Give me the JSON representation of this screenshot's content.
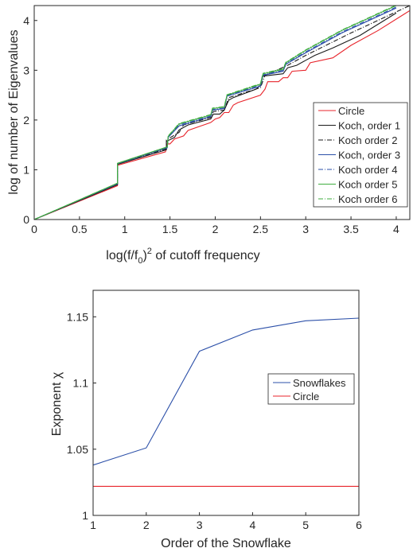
{
  "chart_data": [
    {
      "type": "line",
      "xlabel_main": "log(f/f",
      "xlabel_sub": "0",
      "xlabel_close": ")",
      "xlabel_sup": "2",
      "xlabel_tail": " of cutoff frequency",
      "ylabel": "log of number of Eigenvalues",
      "xlim": [
        0,
        4.15
      ],
      "ylim": [
        0,
        4.3
      ],
      "xticks": [
        0,
        0.5,
        1,
        1.5,
        2,
        2.5,
        3,
        3.5,
        4
      ],
      "xtick_labels": [
        "0",
        "0.5",
        "1",
        "1.5",
        "2",
        "2.5",
        "3",
        "3.5",
        "4"
      ],
      "yticks": [
        0,
        1,
        2,
        3,
        4
      ],
      "ytick_labels": [
        "0",
        "1",
        "2",
        "3",
        "4"
      ],
      "legend_position": "right",
      "series": [
        {
          "name": "Circle",
          "color": "#e8242b",
          "dash": "solid",
          "x": [
            0,
            0.92,
            0.92,
            1.45,
            1.47,
            1.5,
            1.55,
            1.65,
            1.7,
            1.95,
            2.0,
            2.05,
            2.1,
            2.15,
            2.2,
            2.25,
            2.5,
            2.55,
            2.58,
            2.7,
            2.75,
            2.8,
            2.85,
            3.0,
            3.05,
            3.3,
            3.5,
            3.8,
            4.15
          ],
          "y": [
            0,
            0.68,
            1.09,
            1.36,
            1.52,
            1.52,
            1.62,
            1.68,
            1.79,
            1.95,
            2.02,
            2.05,
            2.15,
            2.15,
            2.3,
            2.35,
            2.5,
            2.62,
            2.77,
            2.77,
            2.85,
            2.85,
            2.98,
            3.0,
            3.15,
            3.25,
            3.5,
            3.8,
            4.2
          ]
        },
        {
          "name": "Koch, order 1",
          "color": "#1a1a1a",
          "dash": "solid",
          "x": [
            0,
            0.92,
            0.92,
            1.46,
            1.46,
            1.55,
            1.6,
            1.7,
            1.95,
            1.98,
            2.05,
            2.1,
            2.15,
            2.2,
            2.45,
            2.5,
            2.52,
            2.75,
            2.8,
            2.9,
            3.0,
            3.1,
            3.3,
            3.6,
            4.0
          ],
          "y": [
            0,
            0.7,
            1.11,
            1.4,
            1.57,
            1.65,
            1.8,
            1.9,
            2.02,
            2.12,
            2.12,
            2.2,
            2.4,
            2.45,
            2.62,
            2.7,
            2.88,
            2.93,
            3.05,
            3.1,
            3.2,
            3.3,
            3.45,
            3.7,
            4.15
          ]
        },
        {
          "name": "Koch order 2",
          "color": "#1a1a1a",
          "dash": "6 2 1 2",
          "x": [
            0,
            0.92,
            0.92,
            1.46,
            1.46,
            1.6,
            1.65,
            1.95,
            1.98,
            2.1,
            2.15,
            2.5,
            2.55,
            2.8,
            3.0,
            3.5,
            4.15
          ],
          "y": [
            0,
            0.71,
            1.12,
            1.42,
            1.6,
            1.75,
            1.9,
            2.05,
            2.17,
            2.2,
            2.45,
            2.65,
            2.9,
            3.1,
            3.3,
            3.75,
            4.3
          ]
        },
        {
          "name": "Koch, order 3",
          "color": "#2b4fa8",
          "dash": "solid",
          "x": [
            0,
            0.92,
            0.92,
            1.47,
            1.48,
            1.6,
            1.95,
            1.97,
            2.1,
            2.13,
            2.5,
            2.53,
            2.75,
            2.78,
            3.0,
            3.4,
            4.0
          ],
          "y": [
            0,
            0.72,
            1.12,
            1.44,
            1.65,
            1.88,
            2.07,
            2.2,
            2.23,
            2.48,
            2.68,
            2.9,
            2.98,
            3.12,
            3.35,
            3.75,
            4.25
          ]
        },
        {
          "name": "Koch order 4",
          "color": "#2b4fa8",
          "dash": "6 2 1 2",
          "x": [
            0,
            0.92,
            0.92,
            1.47,
            1.48,
            1.6,
            1.95,
            1.97,
            2.1,
            2.13,
            2.5,
            2.53,
            2.75,
            2.78,
            3.0,
            3.4,
            4.0
          ],
          "y": [
            0,
            0.72,
            1.12,
            1.45,
            1.66,
            1.9,
            2.08,
            2.21,
            2.24,
            2.49,
            2.7,
            2.91,
            3.0,
            3.13,
            3.37,
            3.77,
            4.27
          ]
        },
        {
          "name": "Koch order 5",
          "color": "#3fae3f",
          "dash": "solid",
          "x": [
            0,
            0.92,
            0.92,
            1.47,
            1.48,
            1.6,
            1.95,
            1.97,
            2.1,
            2.13,
            2.5,
            2.53,
            2.75,
            2.78,
            3.0,
            3.4,
            4.0
          ],
          "y": [
            0,
            0.73,
            1.13,
            1.46,
            1.67,
            1.92,
            2.1,
            2.23,
            2.26,
            2.5,
            2.72,
            2.93,
            3.02,
            3.15,
            3.4,
            3.8,
            4.3
          ]
        },
        {
          "name": "Koch order 6",
          "color": "#3fae3f",
          "dash": "6 2 1 2",
          "x": [
            0,
            0.92,
            0.92,
            1.47,
            1.48,
            1.6,
            1.95,
            1.97,
            2.1,
            2.13,
            2.5,
            2.53,
            2.75,
            2.78,
            3.0,
            3.4,
            4.0
          ],
          "y": [
            0,
            0.73,
            1.13,
            1.46,
            1.68,
            1.93,
            2.11,
            2.24,
            2.27,
            2.51,
            2.73,
            2.94,
            3.03,
            3.16,
            3.41,
            3.81,
            4.31
          ]
        }
      ]
    },
    {
      "type": "line",
      "xlabel": "Order of the Snowflake",
      "ylabel": "Exponent χ",
      "xlim": [
        1,
        6
      ],
      "ylim": [
        1,
        1.17
      ],
      "xticks": [
        1,
        2,
        3,
        4,
        5,
        6
      ],
      "xtick_labels": [
        "1",
        "2",
        "3",
        "4",
        "5",
        "6"
      ],
      "yticks": [
        1,
        1.05,
        1.1,
        1.15
      ],
      "ytick_labels": [
        "1",
        "1.05",
        "1.1",
        "1.15"
      ],
      "legend_position": "right",
      "series": [
        {
          "name": "Snowflakes",
          "color": "#2b4fa8",
          "x": [
            1,
            2,
            3,
            4,
            5,
            6
          ],
          "y": [
            1.038,
            1.051,
            1.124,
            1.14,
            1.147,
            1.149
          ]
        },
        {
          "name": "Circle",
          "color": "#e8242b",
          "x": [
            1,
            6
          ],
          "y": [
            1.022,
            1.022
          ]
        }
      ]
    }
  ]
}
